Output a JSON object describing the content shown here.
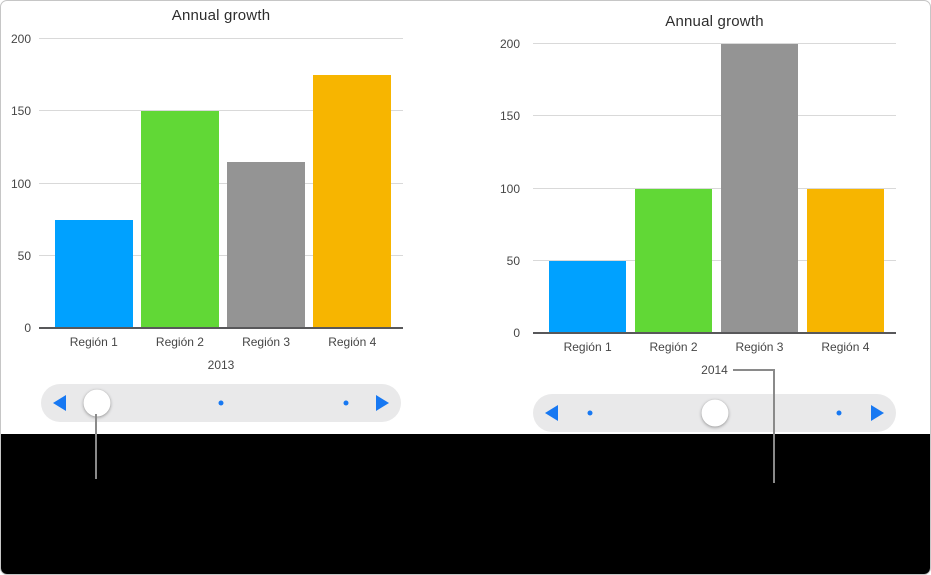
{
  "figure": {
    "background": "#ffffff",
    "footer_background": "#000000",
    "border_color": "#c6c6c6",
    "callout_color": "#8a8a8a"
  },
  "ui": {
    "accent_blue": "#1778f2",
    "track_color": "#e9e9ea",
    "handle_color": "#ffffff",
    "grid_color": "#d9d9d9",
    "axis_color": "#58585a",
    "label_color": "#464646",
    "title_color": "#2d2d2d"
  },
  "chart_data": [
    {
      "type": "bar",
      "title": "Annual growth",
      "categories": [
        "Región 1",
        "Región 2",
        "Región 3",
        "Región 4"
      ],
      "values": [
        75,
        150,
        115,
        175
      ],
      "colors": [
        "#00a1ff",
        "#61d836",
        "#949494",
        "#f7b500"
      ],
      "xlabel": "2013",
      "ylabel": "",
      "ylim": [
        0,
        200
      ],
      "yticks": [
        0,
        50,
        100,
        150,
        200
      ],
      "grid": true,
      "legend": "none"
    },
    {
      "type": "bar",
      "title": "Annual growth",
      "categories": [
        "Región 1",
        "Región 2",
        "Región 3",
        "Región 4"
      ],
      "values": [
        50,
        100,
        200,
        100
      ],
      "colors": [
        "#00a1ff",
        "#61d836",
        "#949494",
        "#f7b500"
      ],
      "xlabel": "2014",
      "ylabel": "",
      "ylim": [
        0,
        200
      ],
      "yticks": [
        0,
        50,
        100,
        150,
        200
      ],
      "grid": true,
      "legend": "none"
    }
  ],
  "sliders": [
    {
      "positions_pct": [
        15.6,
        50.0,
        84.7
      ],
      "handle_index": 0
    },
    {
      "positions_pct": [
        15.7,
        50.2,
        84.4
      ],
      "handle_index": 1
    }
  ]
}
